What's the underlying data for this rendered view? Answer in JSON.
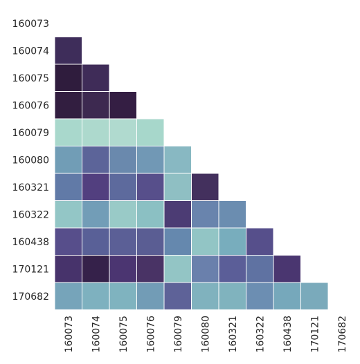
{
  "chart_data": {
    "type": "heatmap",
    "title": "",
    "xlabel": "",
    "ylabel": "",
    "x_categories": [
      "160073",
      "160074",
      "160075",
      "160076",
      "160079",
      "160080",
      "160321",
      "160322",
      "160438",
      "170121",
      "170682"
    ],
    "y_categories": [
      "160073",
      "160074",
      "160075",
      "160076",
      "160079",
      "160080",
      "160321",
      "160322",
      "160438",
      "170121",
      "170682"
    ],
    "mask": "upper-triangle-including-diagonal",
    "colorbar": false,
    "grid": false,
    "cells": [
      [
        null,
        null,
        null,
        null,
        null,
        null,
        null,
        null,
        null,
        null,
        null
      ],
      [
        "#3e2d5a",
        null,
        null,
        null,
        null,
        null,
        null,
        null,
        null,
        null,
        null
      ],
      [
        "#2f1c3d",
        "#3f2c58",
        null,
        null,
        null,
        null,
        null,
        null,
        null,
        null,
        null
      ],
      [
        "#321e40",
        "#3d2950",
        "#341e43",
        null,
        null,
        null,
        null,
        null,
        null,
        null,
        null
      ],
      [
        "#a9d8cc",
        "#add9cd",
        "#b0dacf",
        "#a7d7cb",
        null,
        null,
        null,
        null,
        null,
        null,
        null
      ],
      [
        "#719db6",
        "#5c6499",
        "#6a89ad",
        "#7198b5",
        "#88b8c2",
        null,
        null,
        null,
        null,
        null,
        null
      ],
      [
        "#617aa7",
        "#523f7f",
        "#5d6a9d",
        "#574f8b",
        "#8fbfc3",
        "#43305d",
        null,
        null,
        null,
        null,
        null
      ],
      [
        "#93c6c6",
        "#729db7",
        "#99cac7",
        "#8bc0c3",
        "#4c3c74",
        "#6984ad",
        "#6b8db0",
        null,
        null,
        null,
        null
      ],
      [
        "#574e8b",
        "#596097",
        "#5b5f96",
        "#5a5d93",
        "#6588ae",
        "#92c5c5",
        "#78adbd",
        "#564f8b",
        null,
        null,
        null
      ],
      [
        "#47336b",
        "#35214a",
        "#4b3571",
        "#493365",
        "#93c5c5",
        "#6a80ac",
        "#5b5e98",
        "#5f72a2",
        "#4a3670",
        null,
        null
      ],
      [
        "#76a4ba",
        "#7eb1bf",
        "#7fb3bf",
        "#729cb6",
        "#5e6298",
        "#80b2be",
        "#80b3be",
        "#6c8eb2",
        "#76a8bb",
        "#7aaabb",
        null
      ]
    ]
  }
}
